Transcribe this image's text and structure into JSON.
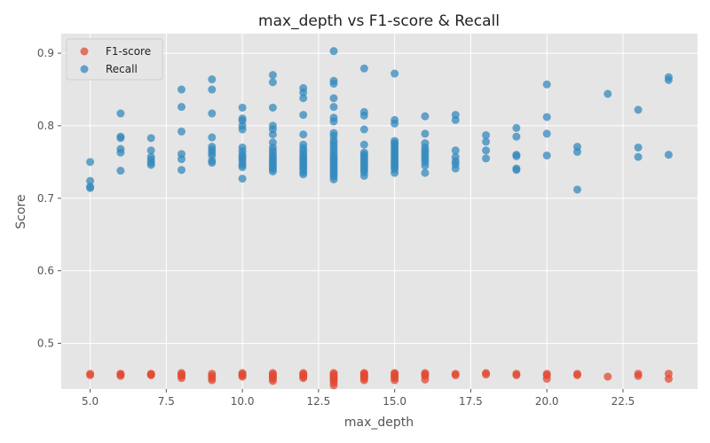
{
  "chart_data": {
    "type": "scatter",
    "title": "max_depth vs F1-score & Recall",
    "xlabel": "max_depth",
    "ylabel": "Score",
    "xlim": [
      4.05,
      24.95
    ],
    "ylim": [
      0.437,
      0.927
    ],
    "xticks": [
      5.0,
      7.5,
      10.0,
      12.5,
      15.0,
      17.5,
      20.0,
      22.5
    ],
    "xtick_labels": [
      "5.0",
      "7.5",
      "10.0",
      "12.5",
      "15.0",
      "17.5",
      "20.0",
      "22.5"
    ],
    "yticks": [
      0.5,
      0.6,
      0.7,
      0.8,
      0.9
    ],
    "ytick_labels": [
      "0.5",
      "0.6",
      "0.7",
      "0.8",
      "0.9"
    ],
    "grid": true,
    "legend_position": "top-left",
    "background": "#e5e5e5",
    "series": [
      {
        "name": "F1-score",
        "color": "#e24a33",
        "points": [
          [
            5,
            0.456
          ],
          [
            5,
            0.458
          ],
          [
            6,
            0.455
          ],
          [
            6,
            0.457
          ],
          [
            6,
            0.458
          ],
          [
            7,
            0.456
          ],
          [
            7,
            0.458
          ],
          [
            7,
            0.457
          ],
          [
            8,
            0.452
          ],
          [
            8,
            0.455
          ],
          [
            8,
            0.457
          ],
          [
            8,
            0.459
          ],
          [
            9,
            0.449
          ],
          [
            9,
            0.452
          ],
          [
            9,
            0.455
          ],
          [
            9,
            0.458
          ],
          [
            10,
            0.454
          ],
          [
            10,
            0.456
          ],
          [
            10,
            0.457
          ],
          [
            10,
            0.459
          ],
          [
            11,
            0.448
          ],
          [
            11,
            0.451
          ],
          [
            11,
            0.453
          ],
          [
            11,
            0.455
          ],
          [
            11,
            0.457
          ],
          [
            11,
            0.459
          ],
          [
            12,
            0.452
          ],
          [
            12,
            0.454
          ],
          [
            12,
            0.456
          ],
          [
            12,
            0.457
          ],
          [
            12,
            0.459
          ],
          [
            13,
            0.442
          ],
          [
            13,
            0.446
          ],
          [
            13,
            0.449
          ],
          [
            13,
            0.451
          ],
          [
            13,
            0.453
          ],
          [
            13,
            0.455
          ],
          [
            13,
            0.457
          ],
          [
            13,
            0.459
          ],
          [
            14,
            0.449
          ],
          [
            14,
            0.452
          ],
          [
            14,
            0.454
          ],
          [
            14,
            0.456
          ],
          [
            14,
            0.458
          ],
          [
            14,
            0.459
          ],
          [
            15,
            0.449
          ],
          [
            15,
            0.452
          ],
          [
            15,
            0.454
          ],
          [
            15,
            0.456
          ],
          [
            15,
            0.458
          ],
          [
            15,
            0.459
          ],
          [
            16,
            0.45
          ],
          [
            16,
            0.455
          ],
          [
            16,
            0.457
          ],
          [
            16,
            0.459
          ],
          [
            17,
            0.456
          ],
          [
            17,
            0.458
          ],
          [
            18,
            0.457
          ],
          [
            18,
            0.459
          ],
          [
            19,
            0.456
          ],
          [
            19,
            0.458
          ],
          [
            20,
            0.451
          ],
          [
            20,
            0.456
          ],
          [
            20,
            0.458
          ],
          [
            21,
            0.456
          ],
          [
            21,
            0.458
          ],
          [
            22,
            0.454
          ],
          [
            23,
            0.455
          ],
          [
            23,
            0.458
          ],
          [
            24,
            0.451
          ],
          [
            24,
            0.458
          ]
        ]
      },
      {
        "name": "Recall",
        "color": "#348abd",
        "points": [
          [
            5,
            0.75
          ],
          [
            5,
            0.724
          ],
          [
            5,
            0.716
          ],
          [
            5,
            0.714
          ],
          [
            6,
            0.817
          ],
          [
            6,
            0.785
          ],
          [
            6,
            0.783
          ],
          [
            6,
            0.768
          ],
          [
            6,
            0.763
          ],
          [
            6,
            0.738
          ],
          [
            7,
            0.783
          ],
          [
            7,
            0.766
          ],
          [
            7,
            0.757
          ],
          [
            7,
            0.753
          ],
          [
            7,
            0.749
          ],
          [
            7,
            0.746
          ],
          [
            8,
            0.85
          ],
          [
            8,
            0.826
          ],
          [
            8,
            0.792
          ],
          [
            8,
            0.761
          ],
          [
            8,
            0.754
          ],
          [
            8,
            0.739
          ],
          [
            9,
            0.864
          ],
          [
            9,
            0.85
          ],
          [
            9,
            0.817
          ],
          [
            9,
            0.784
          ],
          [
            9,
            0.771
          ],
          [
            9,
            0.767
          ],
          [
            9,
            0.763
          ],
          [
            9,
            0.759
          ],
          [
            9,
            0.752
          ],
          [
            9,
            0.749
          ],
          [
            10,
            0.825
          ],
          [
            10,
            0.81
          ],
          [
            10,
            0.807
          ],
          [
            10,
            0.8
          ],
          [
            10,
            0.795
          ],
          [
            10,
            0.77
          ],
          [
            10,
            0.765
          ],
          [
            10,
            0.76
          ],
          [
            10,
            0.757
          ],
          [
            10,
            0.754
          ],
          [
            10,
            0.75
          ],
          [
            10,
            0.746
          ],
          [
            10,
            0.743
          ],
          [
            10,
            0.727
          ],
          [
            11,
            0.87
          ],
          [
            11,
            0.86
          ],
          [
            11,
            0.825
          ],
          [
            11,
            0.8
          ],
          [
            11,
            0.795
          ],
          [
            11,
            0.788
          ],
          [
            11,
            0.777
          ],
          [
            11,
            0.77
          ],
          [
            11,
            0.766
          ],
          [
            11,
            0.762
          ],
          [
            11,
            0.758
          ],
          [
            11,
            0.755
          ],
          [
            11,
            0.752
          ],
          [
            11,
            0.749
          ],
          [
            11,
            0.746
          ],
          [
            11,
            0.743
          ],
          [
            11,
            0.74
          ],
          [
            11,
            0.737
          ],
          [
            12,
            0.852
          ],
          [
            12,
            0.846
          ],
          [
            12,
            0.838
          ],
          [
            12,
            0.815
          ],
          [
            12,
            0.788
          ],
          [
            12,
            0.774
          ],
          [
            12,
            0.769
          ],
          [
            12,
            0.765
          ],
          [
            12,
            0.761
          ],
          [
            12,
            0.758
          ],
          [
            12,
            0.755
          ],
          [
            12,
            0.752
          ],
          [
            12,
            0.749
          ],
          [
            12,
            0.746
          ],
          [
            12,
            0.743
          ],
          [
            12,
            0.74
          ],
          [
            12,
            0.736
          ],
          [
            12,
            0.733
          ],
          [
            13,
            0.903
          ],
          [
            13,
            0.862
          ],
          [
            13,
            0.858
          ],
          [
            13,
            0.838
          ],
          [
            13,
            0.826
          ],
          [
            13,
            0.811
          ],
          [
            13,
            0.806
          ],
          [
            13,
            0.79
          ],
          [
            13,
            0.786
          ],
          [
            13,
            0.78
          ],
          [
            13,
            0.776
          ],
          [
            13,
            0.772
          ],
          [
            13,
            0.768
          ],
          [
            13,
            0.764
          ],
          [
            13,
            0.76
          ],
          [
            13,
            0.757
          ],
          [
            13,
            0.754
          ],
          [
            13,
            0.751
          ],
          [
            13,
            0.748
          ],
          [
            13,
            0.745
          ],
          [
            13,
            0.742
          ],
          [
            13,
            0.739
          ],
          [
            13,
            0.736
          ],
          [
            13,
            0.733
          ],
          [
            13,
            0.73
          ],
          [
            13,
            0.726
          ],
          [
            14,
            0.879
          ],
          [
            14,
            0.819
          ],
          [
            14,
            0.814
          ],
          [
            14,
            0.795
          ],
          [
            14,
            0.774
          ],
          [
            14,
            0.763
          ],
          [
            14,
            0.76
          ],
          [
            14,
            0.757
          ],
          [
            14,
            0.754
          ],
          [
            14,
            0.751
          ],
          [
            14,
            0.748
          ],
          [
            14,
            0.745
          ],
          [
            14,
            0.742
          ],
          [
            14,
            0.739
          ],
          [
            14,
            0.736
          ],
          [
            14,
            0.731
          ],
          [
            15,
            0.872
          ],
          [
            15,
            0.808
          ],
          [
            15,
            0.803
          ],
          [
            15,
            0.779
          ],
          [
            15,
            0.776
          ],
          [
            15,
            0.773
          ],
          [
            15,
            0.77
          ],
          [
            15,
            0.767
          ],
          [
            15,
            0.764
          ],
          [
            15,
            0.761
          ],
          [
            15,
            0.758
          ],
          [
            15,
            0.755
          ],
          [
            15,
            0.752
          ],
          [
            15,
            0.749
          ],
          [
            15,
            0.746
          ],
          [
            15,
            0.743
          ],
          [
            15,
            0.74
          ],
          [
            15,
            0.735
          ],
          [
            16,
            0.813
          ],
          [
            16,
            0.789
          ],
          [
            16,
            0.776
          ],
          [
            16,
            0.77
          ],
          [
            16,
            0.766
          ],
          [
            16,
            0.762
          ],
          [
            16,
            0.758
          ],
          [
            16,
            0.754
          ],
          [
            16,
            0.75
          ],
          [
            16,
            0.745
          ],
          [
            16,
            0.735
          ],
          [
            17,
            0.815
          ],
          [
            17,
            0.808
          ],
          [
            17,
            0.766
          ],
          [
            17,
            0.757
          ],
          [
            17,
            0.751
          ],
          [
            17,
            0.747
          ],
          [
            17,
            0.741
          ],
          [
            18,
            0.787
          ],
          [
            18,
            0.778
          ],
          [
            18,
            0.766
          ],
          [
            18,
            0.755
          ],
          [
            19,
            0.797
          ],
          [
            19,
            0.785
          ],
          [
            19,
            0.76
          ],
          [
            19,
            0.758
          ],
          [
            19,
            0.741
          ],
          [
            19,
            0.739
          ],
          [
            20,
            0.857
          ],
          [
            20,
            0.812
          ],
          [
            20,
            0.789
          ],
          [
            20,
            0.759
          ],
          [
            21,
            0.771
          ],
          [
            21,
            0.764
          ],
          [
            21,
            0.712
          ],
          [
            22,
            0.844
          ],
          [
            23,
            0.822
          ],
          [
            23,
            0.77
          ],
          [
            23,
            0.757
          ],
          [
            24,
            0.867
          ],
          [
            24,
            0.863
          ],
          [
            24,
            0.76
          ]
        ]
      }
    ]
  }
}
